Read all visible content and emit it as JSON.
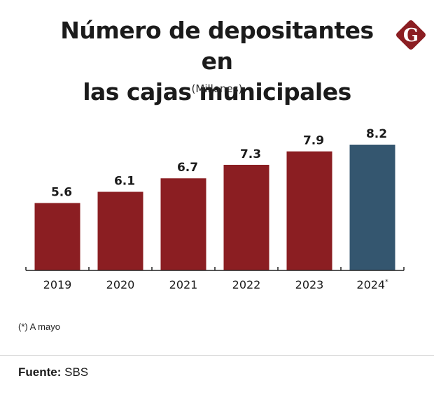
{
  "header": {
    "title_line1": "Número de depositantes en",
    "title_line2": "las cajas municipales",
    "subtitle": "(Millones)",
    "logo_letter": "G"
  },
  "colors": {
    "bar_default": "#8B1E22",
    "bar_highlight": "#34566F",
    "logo": "#8B1E22",
    "axis": "#222222"
  },
  "chart_data": {
    "type": "bar",
    "title": "Número de depositantes en las cajas municipales",
    "subtitle": "(Millones)",
    "xlabel": "",
    "ylabel": "",
    "categories": [
      "2019",
      "2020",
      "2021",
      "2022",
      "2023",
      "2024*"
    ],
    "values": [
      5.6,
      6.1,
      6.7,
      7.3,
      7.9,
      8.2
    ],
    "data_labels": [
      "5.6",
      "6.1",
      "6.7",
      "7.3",
      "7.9",
      "8.2"
    ],
    "highlight_index": 5,
    "ylim": [
      2.6,
      8.2
    ],
    "grid": false,
    "legend": "none"
  },
  "footer": {
    "note": "(*) A mayo",
    "source_label": "Fuente:",
    "source_value": "SBS"
  }
}
